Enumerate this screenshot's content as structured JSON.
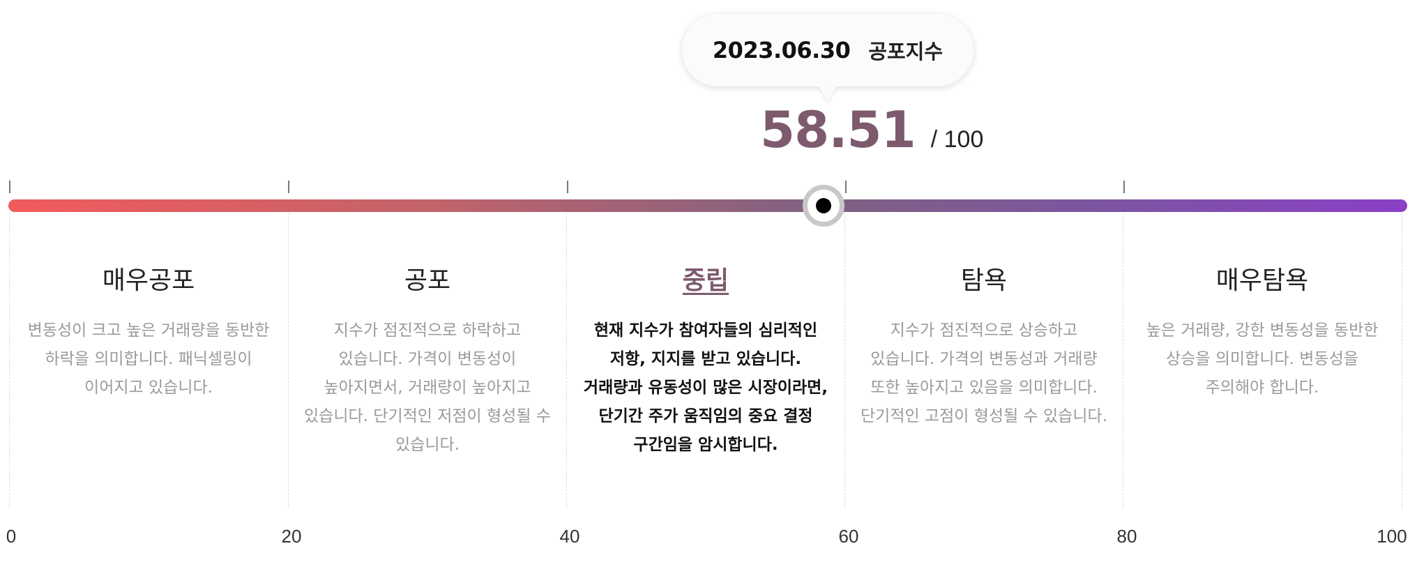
{
  "tooltip": {
    "date": "2023.06.30",
    "label": "공포지수"
  },
  "score": {
    "value": "58.51",
    "max_text": "/ 100",
    "current": 58.51,
    "max": 100
  },
  "gauge": {
    "min": 0,
    "max": 100,
    "gradient_colors": [
      "#f25a5c",
      "#7f6181",
      "#8b3fc7"
    ],
    "marker_color": "#000000",
    "accent_color": "#7d5a6e"
  },
  "axis": {
    "labels": [
      "0",
      "20",
      "40",
      "60",
      "80",
      "100"
    ]
  },
  "sections": [
    {
      "title": "매우공포",
      "description": "변동성이 크고 높은 거래량을 동반한 하락을 의미합니다. 패닉셀링이 이어지고 있습니다.",
      "active": false
    },
    {
      "title": "공포",
      "description": "지수가 점진적으로 하락하고 있습니다. 가격이 변동성이 높아지면서, 거래량이 높아지고 있습니다. 단기적인 저점이 형성될 수 있습니다.",
      "active": false
    },
    {
      "title": "중립",
      "description": "현재 지수가 참여자들의 심리적인 저항, 지지를 받고 있습니다. 거래량과 유동성이 많은 시장이라면, 단기간 주가 움직임의 중요 결정 구간임을 암시합니다.",
      "active": true
    },
    {
      "title": "탐욕",
      "description": "지수가 점진적으로 상승하고 있습니다. 가격의 변동성과 거래량 또한 높아지고 있음을 의미합니다. 단기적인 고점이 형성될 수 있습니다.",
      "active": false
    },
    {
      "title": "매우탐욕",
      "description": "높은 거래량, 강한 변동성을 동반한 상승을 의미합니다. 변동성을 주의해야 합니다.",
      "active": false
    }
  ]
}
